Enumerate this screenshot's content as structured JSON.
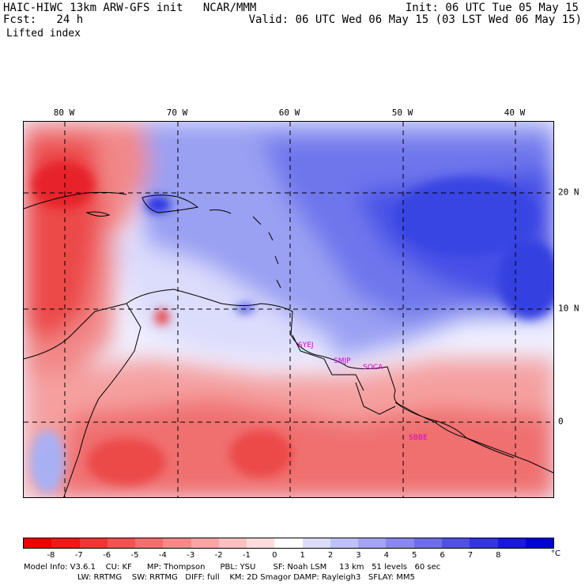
{
  "header": {
    "model_title": "HAIC-HIWC 13km ARW-GFS init   NCAR/MMM",
    "forecast": "Fcst:   24 h",
    "field": "Lifted index",
    "init": "Init: 06 UTC Tue 05 May 15",
    "valid": "Valid: 06 UTC Wed 06 May 15 (03 LST Wed 06 May 15)"
  },
  "map": {
    "lon_labels": [
      "80 W",
      "70 W",
      "60 W",
      "50 W",
      "40 W"
    ],
    "lat_labels": [
      "20 N",
      "10 N",
      "0"
    ],
    "station_labels": [
      "SYEJ",
      "SMJP",
      "SOCA",
      "SBBE"
    ],
    "colors": {
      "strong_positive": "#e8222a",
      "positive": "#f06a6a",
      "weak_positive": "#f8b8b8",
      "neutral": "#ffffff",
      "weak_negative": "#c8ccf6",
      "negative": "#7a80ee",
      "strong_negative": "#2a35e0",
      "station_label": "#d000d0"
    }
  },
  "colorbar": {
    "ticks": [
      "-8",
      "-7",
      "-6",
      "-5",
      "-4",
      "-3",
      "-2",
      "-1",
      "0",
      "1",
      "2",
      "3",
      "4",
      "5",
      "6",
      "7",
      "8"
    ],
    "unit": "°C",
    "colors": [
      "#f00000",
      "#f21818",
      "#f43434",
      "#f65050",
      "#f76c6c",
      "#f98888",
      "#fba4a4",
      "#fcc0c0",
      "#fedcdc",
      "#ffffff",
      "#dcdcfc",
      "#c0c0f8",
      "#a4a4f4",
      "#8888f0",
      "#6c6cec",
      "#5050e8",
      "#3434e4",
      "#1818e0",
      "#0000dc"
    ]
  },
  "model_info": {
    "line1": "Model Info: V3.6.1    CU: KF      MP: Thompson      PBL: YSU       SF: Noah LSM     13 km   51 levels   60 sec",
    "line2": "LW: RRTMG    SW: RRTMG   DIFF: full    KM: 2D Smagor DAMP: Rayleigh3   SFLAY: MM5"
  }
}
